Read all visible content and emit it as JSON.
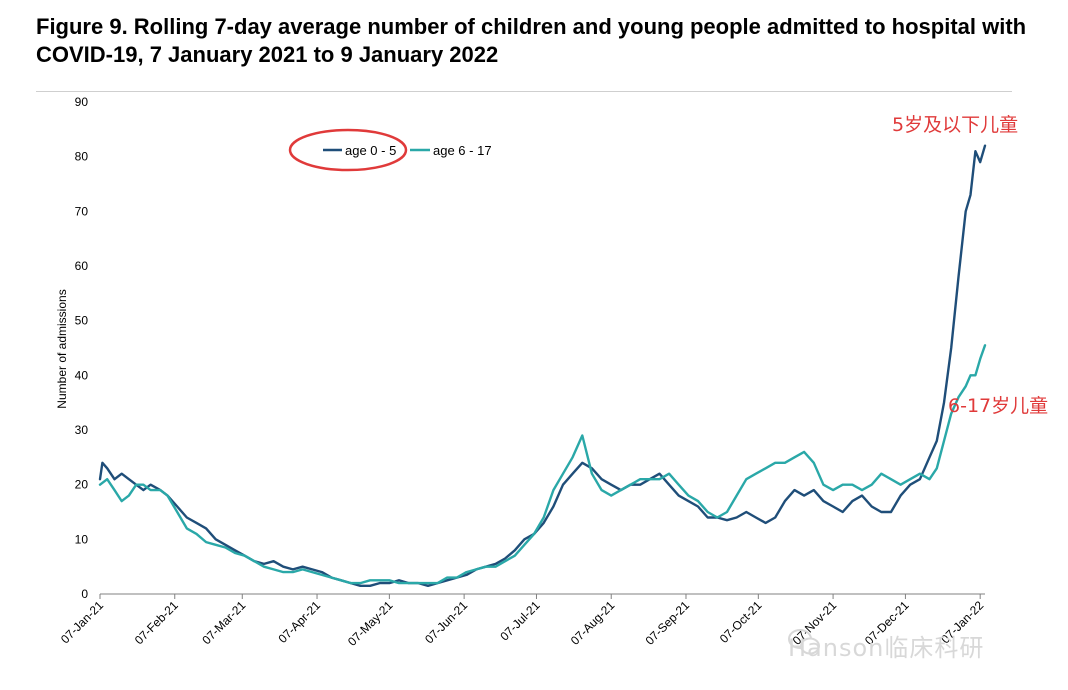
{
  "figure": {
    "title": "Figure 9. Rolling 7-day average number of children and young people admitted to hospital with COVID-19, 7 January 2021 to 9 January 2022"
  },
  "chart_data": {
    "type": "line",
    "title": "Figure 9. Rolling 7-day average number of children and young people admitted to hospital with COVID-19, 7 January 2021 to 9 January 2022",
    "xlabel": "",
    "ylabel": "Number of admissions",
    "ylim": [
      0,
      90
    ],
    "yticks": [
      0,
      10,
      20,
      30,
      40,
      50,
      60,
      70,
      80,
      90
    ],
    "xlim": [
      "2021-01-07",
      "2022-01-09"
    ],
    "xtick_labels": [
      "07-Jan-21",
      "07-Feb-21",
      "07-Mar-21",
      "07-Apr-21",
      "07-May-21",
      "07-Jun-21",
      "07-Jul-21",
      "07-Aug-21",
      "07-Sep-21",
      "07-Oct-21",
      "07-Nov-21",
      "07-Dec-21",
      "07-Jan-22"
    ],
    "xtick_dates": [
      "2021-01-07",
      "2021-02-07",
      "2021-03-07",
      "2021-04-07",
      "2021-05-07",
      "2021-06-07",
      "2021-07-07",
      "2021-08-07",
      "2021-09-07",
      "2021-10-07",
      "2021-11-07",
      "2021-12-07",
      "2022-01-07"
    ],
    "grid": false,
    "legend": "top-left",
    "series": [
      {
        "name": "age 0 - 5",
        "color": "#1f4e79",
        "points": [
          [
            "2021-01-07",
            21
          ],
          [
            "2021-01-08",
            24
          ],
          [
            "2021-01-10",
            23
          ],
          [
            "2021-01-13",
            21
          ],
          [
            "2021-01-16",
            22
          ],
          [
            "2021-01-19",
            21
          ],
          [
            "2021-01-22",
            20
          ],
          [
            "2021-01-25",
            19
          ],
          [
            "2021-01-28",
            20
          ],
          [
            "2021-02-01",
            19
          ],
          [
            "2021-02-04",
            18
          ],
          [
            "2021-02-08",
            16
          ],
          [
            "2021-02-12",
            14
          ],
          [
            "2021-02-16",
            13
          ],
          [
            "2021-02-20",
            12
          ],
          [
            "2021-02-24",
            10
          ],
          [
            "2021-02-28",
            9
          ],
          [
            "2021-03-04",
            8
          ],
          [
            "2021-03-08",
            7
          ],
          [
            "2021-03-12",
            6
          ],
          [
            "2021-03-16",
            5.5
          ],
          [
            "2021-03-20",
            6
          ],
          [
            "2021-03-24",
            5
          ],
          [
            "2021-03-28",
            4.5
          ],
          [
            "2021-04-01",
            5
          ],
          [
            "2021-04-05",
            4.5
          ],
          [
            "2021-04-09",
            4
          ],
          [
            "2021-04-13",
            3
          ],
          [
            "2021-04-17",
            2.5
          ],
          [
            "2021-04-21",
            2
          ],
          [
            "2021-04-25",
            1.5
          ],
          [
            "2021-04-29",
            1.5
          ],
          [
            "2021-05-03",
            2
          ],
          [
            "2021-05-07",
            2
          ],
          [
            "2021-05-11",
            2.5
          ],
          [
            "2021-05-15",
            2
          ],
          [
            "2021-05-19",
            2
          ],
          [
            "2021-05-23",
            1.5
          ],
          [
            "2021-05-27",
            2
          ],
          [
            "2021-05-31",
            2.5
          ],
          [
            "2021-06-04",
            3
          ],
          [
            "2021-06-08",
            3.5
          ],
          [
            "2021-06-12",
            4.5
          ],
          [
            "2021-06-16",
            5
          ],
          [
            "2021-06-20",
            5.5
          ],
          [
            "2021-06-24",
            6.5
          ],
          [
            "2021-06-28",
            8
          ],
          [
            "2021-07-02",
            10
          ],
          [
            "2021-07-06",
            11
          ],
          [
            "2021-07-10",
            13
          ],
          [
            "2021-07-14",
            16
          ],
          [
            "2021-07-18",
            20
          ],
          [
            "2021-07-22",
            22
          ],
          [
            "2021-07-26",
            24
          ],
          [
            "2021-07-30",
            23
          ],
          [
            "2021-08-03",
            21
          ],
          [
            "2021-08-07",
            20
          ],
          [
            "2021-08-11",
            19
          ],
          [
            "2021-08-15",
            20
          ],
          [
            "2021-08-19",
            20
          ],
          [
            "2021-08-23",
            21
          ],
          [
            "2021-08-27",
            22
          ],
          [
            "2021-08-31",
            20
          ],
          [
            "2021-09-04",
            18
          ],
          [
            "2021-09-08",
            17
          ],
          [
            "2021-09-12",
            16
          ],
          [
            "2021-09-16",
            14
          ],
          [
            "2021-09-20",
            14
          ],
          [
            "2021-09-24",
            13.5
          ],
          [
            "2021-09-28",
            14
          ],
          [
            "2021-10-02",
            15
          ],
          [
            "2021-10-06",
            14
          ],
          [
            "2021-10-10",
            13
          ],
          [
            "2021-10-14",
            14
          ],
          [
            "2021-10-18",
            17
          ],
          [
            "2021-10-22",
            19
          ],
          [
            "2021-10-26",
            18
          ],
          [
            "2021-10-30",
            19
          ],
          [
            "2021-11-03",
            17
          ],
          [
            "2021-11-07",
            16
          ],
          [
            "2021-11-11",
            15
          ],
          [
            "2021-11-15",
            17
          ],
          [
            "2021-11-19",
            18
          ],
          [
            "2021-11-23",
            16
          ],
          [
            "2021-11-27",
            15
          ],
          [
            "2021-12-01",
            15
          ],
          [
            "2021-12-05",
            18
          ],
          [
            "2021-12-09",
            20
          ],
          [
            "2021-12-13",
            21
          ],
          [
            "2021-12-17",
            25
          ],
          [
            "2021-12-20",
            28
          ],
          [
            "2021-12-23",
            35
          ],
          [
            "2021-12-26",
            45
          ],
          [
            "2021-12-29",
            58
          ],
          [
            "2022-01-01",
            70
          ],
          [
            "2022-01-03",
            73
          ],
          [
            "2022-01-05",
            81
          ],
          [
            "2022-01-07",
            79
          ],
          [
            "2022-01-09",
            82
          ]
        ]
      },
      {
        "name": "age 6 - 17",
        "color": "#2aa8a8",
        "points": [
          [
            "2021-01-07",
            20
          ],
          [
            "2021-01-10",
            21
          ],
          [
            "2021-01-13",
            19
          ],
          [
            "2021-01-16",
            17
          ],
          [
            "2021-01-19",
            18
          ],
          [
            "2021-01-22",
            20
          ],
          [
            "2021-01-25",
            20
          ],
          [
            "2021-01-28",
            19
          ],
          [
            "2021-02-01",
            19
          ],
          [
            "2021-02-04",
            18
          ],
          [
            "2021-02-08",
            15
          ],
          [
            "2021-02-12",
            12
          ],
          [
            "2021-02-16",
            11
          ],
          [
            "2021-02-20",
            9.5
          ],
          [
            "2021-02-24",
            9
          ],
          [
            "2021-02-28",
            8.5
          ],
          [
            "2021-03-04",
            7.5
          ],
          [
            "2021-03-08",
            7
          ],
          [
            "2021-03-12",
            6
          ],
          [
            "2021-03-16",
            5
          ],
          [
            "2021-03-20",
            4.5
          ],
          [
            "2021-03-24",
            4
          ],
          [
            "2021-03-28",
            4
          ],
          [
            "2021-04-01",
            4.5
          ],
          [
            "2021-04-05",
            4
          ],
          [
            "2021-04-09",
            3.5
          ],
          [
            "2021-04-13",
            3
          ],
          [
            "2021-04-17",
            2.5
          ],
          [
            "2021-04-21",
            2
          ],
          [
            "2021-04-25",
            2
          ],
          [
            "2021-04-29",
            2.5
          ],
          [
            "2021-05-03",
            2.5
          ],
          [
            "2021-05-07",
            2.5
          ],
          [
            "2021-05-11",
            2
          ],
          [
            "2021-05-15",
            2
          ],
          [
            "2021-05-19",
            2
          ],
          [
            "2021-05-23",
            2
          ],
          [
            "2021-05-27",
            2
          ],
          [
            "2021-05-31",
            3
          ],
          [
            "2021-06-04",
            3
          ],
          [
            "2021-06-08",
            4
          ],
          [
            "2021-06-12",
            4.5
          ],
          [
            "2021-06-16",
            5
          ],
          [
            "2021-06-20",
            5
          ],
          [
            "2021-06-24",
            6
          ],
          [
            "2021-06-28",
            7
          ],
          [
            "2021-07-02",
            9
          ],
          [
            "2021-07-06",
            11
          ],
          [
            "2021-07-10",
            14
          ],
          [
            "2021-07-14",
            19
          ],
          [
            "2021-07-18",
            22
          ],
          [
            "2021-07-22",
            25
          ],
          [
            "2021-07-26",
            29
          ],
          [
            "2021-07-30",
            22
          ],
          [
            "2021-08-03",
            19
          ],
          [
            "2021-08-07",
            18
          ],
          [
            "2021-08-11",
            19
          ],
          [
            "2021-08-15",
            20
          ],
          [
            "2021-08-19",
            21
          ],
          [
            "2021-08-23",
            21
          ],
          [
            "2021-08-27",
            21
          ],
          [
            "2021-08-31",
            22
          ],
          [
            "2021-09-04",
            20
          ],
          [
            "2021-09-08",
            18
          ],
          [
            "2021-09-12",
            17
          ],
          [
            "2021-09-16",
            15
          ],
          [
            "2021-09-20",
            14
          ],
          [
            "2021-09-24",
            15
          ],
          [
            "2021-09-28",
            18
          ],
          [
            "2021-10-02",
            21
          ],
          [
            "2021-10-06",
            22
          ],
          [
            "2021-10-10",
            23
          ],
          [
            "2021-10-14",
            24
          ],
          [
            "2021-10-18",
            24
          ],
          [
            "2021-10-22",
            25
          ],
          [
            "2021-10-26",
            26
          ],
          [
            "2021-10-30",
            24
          ],
          [
            "2021-11-03",
            20
          ],
          [
            "2021-11-07",
            19
          ],
          [
            "2021-11-11",
            20
          ],
          [
            "2021-11-15",
            20
          ],
          [
            "2021-11-19",
            19
          ],
          [
            "2021-11-23",
            20
          ],
          [
            "2021-11-27",
            22
          ],
          [
            "2021-12-01",
            21
          ],
          [
            "2021-12-05",
            20
          ],
          [
            "2021-12-09",
            21
          ],
          [
            "2021-12-13",
            22
          ],
          [
            "2021-12-17",
            21
          ],
          [
            "2021-12-20",
            23
          ],
          [
            "2021-12-23",
            28
          ],
          [
            "2021-12-26",
            33
          ],
          [
            "2021-12-29",
            36
          ],
          [
            "2022-01-01",
            38
          ],
          [
            "2022-01-03",
            40
          ],
          [
            "2022-01-05",
            40
          ],
          [
            "2022-01-07",
            43
          ],
          [
            "2022-01-09",
            45.5
          ]
        ]
      }
    ],
    "annotations": [
      {
        "text": "5岁及以下儿童",
        "color": "#e03a3a"
      },
      {
        "text": "6-17岁儿童",
        "color": "#e03a3a"
      }
    ],
    "legend_highlight_color": "#e03a3a"
  },
  "watermark": {
    "text": "Hanson临床科研"
  }
}
